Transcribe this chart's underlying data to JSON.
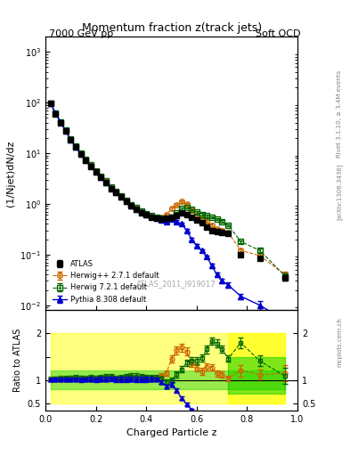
{
  "title": "Momentum fraction z(track jets)",
  "header_left": "7000 GeV pp",
  "header_right": "Soft QCD",
  "ylabel_main": "(1/Njet)dN/dz",
  "ylabel_ratio": "Ratio to ATLAS",
  "xlabel": "Charged Particle z",
  "right_label_top": "Rivet 3.1.10, ≥ 3.4M events",
  "right_label_bottom": "[arXiv:1306.3436]",
  "watermark": "ATLAS_2011_I919017",
  "rivet_label": "mcplots.cern.ch",
  "atlas_x": [
    0.02,
    0.04,
    0.06,
    0.08,
    0.1,
    0.12,
    0.14,
    0.16,
    0.18,
    0.2,
    0.22,
    0.24,
    0.26,
    0.28,
    0.3,
    0.32,
    0.34,
    0.36,
    0.38,
    0.4,
    0.42,
    0.44,
    0.46,
    0.48,
    0.5,
    0.52,
    0.54,
    0.56,
    0.58,
    0.6,
    0.62,
    0.64,
    0.66,
    0.68,
    0.7,
    0.725,
    0.775,
    0.85,
    0.95
  ],
  "atlas_y": [
    95.0,
    60.0,
    40.0,
    27.0,
    18.0,
    13.0,
    9.5,
    7.2,
    5.5,
    4.2,
    3.3,
    2.6,
    2.0,
    1.65,
    1.35,
    1.1,
    0.9,
    0.78,
    0.67,
    0.6,
    0.55,
    0.52,
    0.5,
    0.52,
    0.55,
    0.58,
    0.65,
    0.62,
    0.55,
    0.48,
    0.42,
    0.35,
    0.3,
    0.28,
    0.27,
    0.26,
    0.1,
    0.085,
    0.035
  ],
  "atlas_yerr": [
    3.0,
    2.0,
    1.5,
    1.0,
    0.7,
    0.5,
    0.4,
    0.3,
    0.25,
    0.2,
    0.15,
    0.12,
    0.1,
    0.08,
    0.07,
    0.06,
    0.05,
    0.04,
    0.035,
    0.03,
    0.025,
    0.02,
    0.02,
    0.02,
    0.02,
    0.025,
    0.03,
    0.03,
    0.025,
    0.02,
    0.02,
    0.015,
    0.015,
    0.015,
    0.015,
    0.015,
    0.01,
    0.008,
    0.005
  ],
  "herwig_x": [
    0.02,
    0.04,
    0.06,
    0.08,
    0.1,
    0.12,
    0.14,
    0.16,
    0.18,
    0.2,
    0.22,
    0.24,
    0.26,
    0.28,
    0.3,
    0.32,
    0.34,
    0.36,
    0.38,
    0.4,
    0.42,
    0.44,
    0.46,
    0.48,
    0.5,
    0.52,
    0.54,
    0.56,
    0.58,
    0.6,
    0.62,
    0.64,
    0.66,
    0.68,
    0.7,
    0.725,
    0.775,
    0.85,
    0.95
  ],
  "herwig_y": [
    96.0,
    61.0,
    41.0,
    27.5,
    18.5,
    13.5,
    9.8,
    7.4,
    5.7,
    4.3,
    3.4,
    2.7,
    2.1,
    1.7,
    1.4,
    1.15,
    0.95,
    0.82,
    0.7,
    0.62,
    0.57,
    0.54,
    0.55,
    0.6,
    0.8,
    0.95,
    1.1,
    1.0,
    0.75,
    0.6,
    0.5,
    0.45,
    0.38,
    0.32,
    0.3,
    0.27,
    0.12,
    0.095,
    0.04
  ],
  "herwig_yerr": [
    4.0,
    2.5,
    1.8,
    1.2,
    0.8,
    0.6,
    0.45,
    0.35,
    0.28,
    0.22,
    0.18,
    0.14,
    0.12,
    0.09,
    0.08,
    0.07,
    0.06,
    0.05,
    0.04,
    0.035,
    0.03,
    0.025,
    0.025,
    0.03,
    0.04,
    0.05,
    0.06,
    0.055,
    0.04,
    0.035,
    0.03,
    0.025,
    0.02,
    0.018,
    0.018,
    0.015,
    0.012,
    0.009,
    0.006
  ],
  "herwig72_x": [
    0.02,
    0.04,
    0.06,
    0.08,
    0.1,
    0.12,
    0.14,
    0.16,
    0.18,
    0.2,
    0.22,
    0.24,
    0.26,
    0.28,
    0.3,
    0.32,
    0.34,
    0.36,
    0.38,
    0.4,
    0.42,
    0.44,
    0.46,
    0.48,
    0.5,
    0.52,
    0.54,
    0.56,
    0.58,
    0.6,
    0.62,
    0.64,
    0.66,
    0.68,
    0.7,
    0.725,
    0.775,
    0.85,
    0.95
  ],
  "herwig72_y": [
    97.0,
    62.0,
    41.5,
    28.0,
    18.8,
    13.8,
    10.0,
    7.5,
    5.8,
    4.4,
    3.5,
    2.8,
    2.15,
    1.72,
    1.42,
    1.18,
    0.97,
    0.84,
    0.72,
    0.63,
    0.58,
    0.55,
    0.52,
    0.5,
    0.55,
    0.65,
    0.8,
    0.85,
    0.78,
    0.68,
    0.62,
    0.58,
    0.55,
    0.5,
    0.45,
    0.38,
    0.18,
    0.12,
    0.038
  ],
  "herwig72_yerr": [
    4.0,
    2.5,
    1.8,
    1.2,
    0.8,
    0.6,
    0.45,
    0.35,
    0.28,
    0.22,
    0.18,
    0.14,
    0.12,
    0.09,
    0.08,
    0.07,
    0.06,
    0.05,
    0.04,
    0.035,
    0.03,
    0.025,
    0.025,
    0.025,
    0.03,
    0.035,
    0.04,
    0.045,
    0.04,
    0.035,
    0.03,
    0.028,
    0.025,
    0.022,
    0.02,
    0.018,
    0.012,
    0.01,
    0.006
  ],
  "pythia_x": [
    0.02,
    0.04,
    0.06,
    0.08,
    0.1,
    0.12,
    0.14,
    0.16,
    0.18,
    0.2,
    0.22,
    0.24,
    0.26,
    0.28,
    0.3,
    0.32,
    0.34,
    0.36,
    0.38,
    0.4,
    0.42,
    0.44,
    0.46,
    0.48,
    0.5,
    0.52,
    0.54,
    0.56,
    0.58,
    0.6,
    0.62,
    0.64,
    0.66,
    0.68,
    0.7,
    0.725,
    0.775,
    0.85,
    0.95
  ],
  "pythia_y": [
    95.5,
    60.5,
    40.5,
    27.2,
    18.2,
    13.2,
    9.6,
    7.3,
    5.6,
    4.25,
    3.35,
    2.65,
    2.05,
    1.67,
    1.37,
    1.12,
    0.92,
    0.79,
    0.68,
    0.61,
    0.56,
    0.53,
    0.48,
    0.45,
    0.5,
    0.45,
    0.4,
    0.3,
    0.2,
    0.15,
    0.12,
    0.09,
    0.06,
    0.04,
    0.03,
    0.025,
    0.015,
    0.01,
    0.005
  ],
  "pythia_yerr": [
    3.5,
    2.2,
    1.6,
    1.1,
    0.75,
    0.55,
    0.42,
    0.32,
    0.26,
    0.21,
    0.16,
    0.13,
    0.11,
    0.085,
    0.07,
    0.06,
    0.05,
    0.04,
    0.036,
    0.032,
    0.028,
    0.022,
    0.022,
    0.02,
    0.025,
    0.025,
    0.022,
    0.018,
    0.012,
    0.01,
    0.008,
    0.006,
    0.005,
    0.004,
    0.003,
    0.003,
    0.002,
    0.002,
    0.001
  ],
  "color_atlas": "#000000",
  "color_herwig": "#cc6600",
  "color_herwig72": "#006600",
  "color_pythia": "#0000cc",
  "band_yellow": "#ffff00",
  "band_green": "#00cc00",
  "ylim_main": [
    0.008,
    2000
  ],
  "ylim_ratio": [
    0.35,
    2.5
  ],
  "xlim": [
    0.0,
    1.0
  ]
}
